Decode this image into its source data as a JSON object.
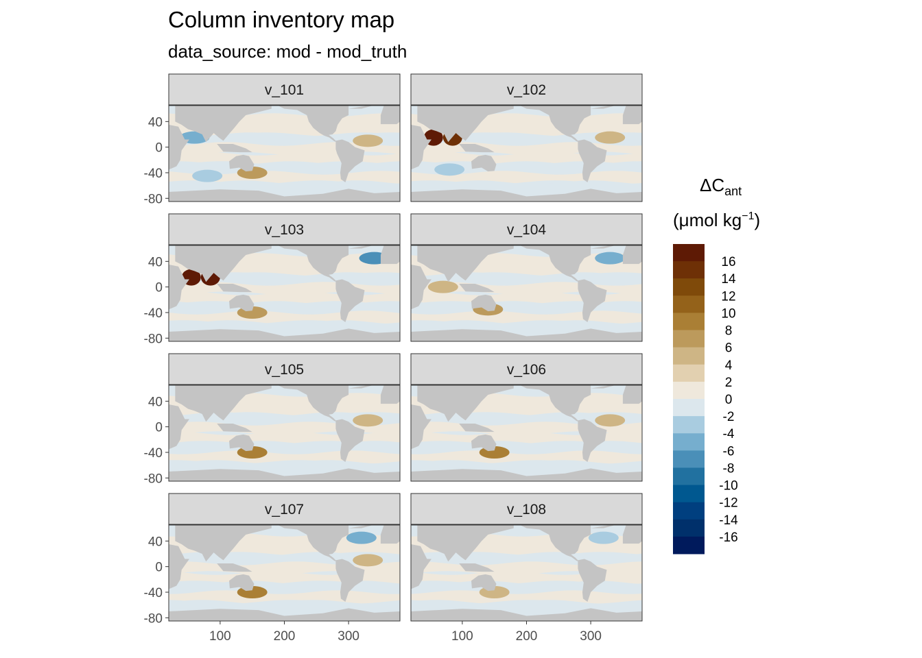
{
  "chart_data": {
    "type": "heatmap",
    "title": "Column inventory map",
    "subtitle": "data_source: mod - mod_truth",
    "xlabel": "",
    "ylabel": "",
    "xlim": [
      20,
      380
    ],
    "ylim": [
      -85,
      65
    ],
    "x_ticks": [
      100,
      200,
      300
    ],
    "y_ticks": [
      40,
      0,
      -40,
      -80
    ],
    "grid": false,
    "panels": [
      {
        "label": "v_101",
        "hotspots": [
          {
            "lon": 60,
            "lat": 15,
            "value": -6
          },
          {
            "lon": 80,
            "lat": -45,
            "value": -4
          },
          {
            "lon": 330,
            "lat": 10,
            "value": 4
          },
          {
            "lon": 150,
            "lat": -40,
            "value": 6
          }
        ]
      },
      {
        "label": "v_102",
        "hotspots": [
          {
            "lon": 55,
            "lat": 15,
            "value": 16
          },
          {
            "lon": 85,
            "lat": 15,
            "value": 14
          },
          {
            "lon": 80,
            "lat": -35,
            "value": -4
          },
          {
            "lon": 330,
            "lat": 15,
            "value": 4
          }
        ]
      },
      {
        "label": "v_103",
        "hotspots": [
          {
            "lon": 55,
            "lat": 15,
            "value": 16
          },
          {
            "lon": 85,
            "lat": 15,
            "value": 16
          },
          {
            "lon": 150,
            "lat": -40,
            "value": 6
          },
          {
            "lon": 340,
            "lat": 45,
            "value": -8
          }
        ]
      },
      {
        "label": "v_104",
        "hotspots": [
          {
            "lon": 70,
            "lat": 0,
            "value": 4
          },
          {
            "lon": 140,
            "lat": -35,
            "value": 6
          },
          {
            "lon": 330,
            "lat": 45,
            "value": -6
          }
        ]
      },
      {
        "label": "v_105",
        "hotspots": [
          {
            "lon": 330,
            "lat": 10,
            "value": 4
          },
          {
            "lon": 150,
            "lat": -40,
            "value": 8
          }
        ]
      },
      {
        "label": "v_106",
        "hotspots": [
          {
            "lon": 330,
            "lat": 10,
            "value": 4
          },
          {
            "lon": 150,
            "lat": -40,
            "value": 8
          }
        ]
      },
      {
        "label": "v_107",
        "hotspots": [
          {
            "lon": 320,
            "lat": 45,
            "value": -6
          },
          {
            "lon": 330,
            "lat": 10,
            "value": 4
          },
          {
            "lon": 150,
            "lat": -40,
            "value": 8
          }
        ]
      },
      {
        "label": "v_108",
        "hotspots": [
          {
            "lon": 320,
            "lat": 45,
            "value": -4
          },
          {
            "lon": 150,
            "lat": -40,
            "value": 4
          }
        ]
      }
    ],
    "legend": {
      "title_main": "ΔC",
      "title_sub": "ant",
      "unit_prefix": "(μmol kg",
      "unit_sup": "−1",
      "unit_suffix": ")",
      "placement": "right",
      "breaks": [
        -18,
        -16,
        -14,
        -12,
        -10,
        -8,
        -6,
        -4,
        -2,
        0,
        2,
        4,
        6,
        8,
        10,
        12,
        14,
        16,
        18
      ],
      "labels": [
        "16",
        "14",
        "12",
        "10",
        "8",
        "6",
        "4",
        "2",
        "0",
        "-2",
        "-4",
        "-6",
        "-8",
        "-10",
        "-12",
        "-14",
        "-16"
      ],
      "colors": [
        "#001A5C",
        "#00306B",
        "#003F7F",
        "#005890",
        "#2171A0",
        "#4A8FB8",
        "#76AECE",
        "#A9CCE0",
        "#DCE7ED",
        "#EFE8DC",
        "#E2D0B0",
        "#CEB585",
        "#BC9A5C",
        "#AA7F35",
        "#94621A",
        "#7F4A0A",
        "#6E3006",
        "#5E1A05"
      ],
      "land_color": "#C4C4C4",
      "strip_color": "#D9D9D9"
    }
  }
}
